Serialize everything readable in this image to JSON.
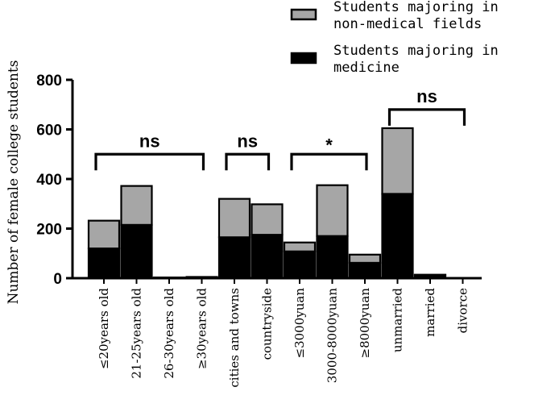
{
  "chart_data": {
    "type": "bar",
    "stacked": true,
    "ylabel": "Number of female college students",
    "ylim": [
      0,
      800
    ],
    "yticks": [
      0,
      200,
      400,
      600,
      800
    ],
    "categories": [
      "≤20years old",
      "21-25years old",
      "26-30years old",
      "≥30years old",
      "cities and towns",
      "countryside",
      "≤3000yuan",
      "3000-8000yuan",
      "≥8000yuan",
      "unmarried",
      "married",
      "divorce"
    ],
    "series": [
      {
        "name": "Students majoring in medicine",
        "color": "#000000",
        "values": [
          120,
          215,
          2,
          3,
          165,
          175,
          108,
          170,
          62,
          340,
          12,
          0
        ]
      },
      {
        "name": "Students majoring in non-medical fields",
        "color": "#a6a6a6",
        "values": [
          112,
          157,
          1,
          2,
          155,
          123,
          36,
          205,
          33,
          265,
          2,
          0
        ]
      }
    ],
    "legend": {
      "position": "top-right",
      "entries": [
        {
          "series": 1,
          "lines": [
            "Students majoring in",
            "non-medical fields"
          ]
        },
        {
          "series": 0,
          "lines": [
            "Students majoring in",
            "medicine"
          ]
        }
      ]
    },
    "annotations": [
      {
        "label": "ns",
        "from": 0,
        "to": 3,
        "at": 500
      },
      {
        "label": "ns",
        "from": 4,
        "to": 5,
        "at": 500
      },
      {
        "label": "*",
        "from": 6,
        "to": 8,
        "at": 500
      },
      {
        "label": "ns",
        "from": 9,
        "to": 11,
        "at": 680
      }
    ]
  }
}
